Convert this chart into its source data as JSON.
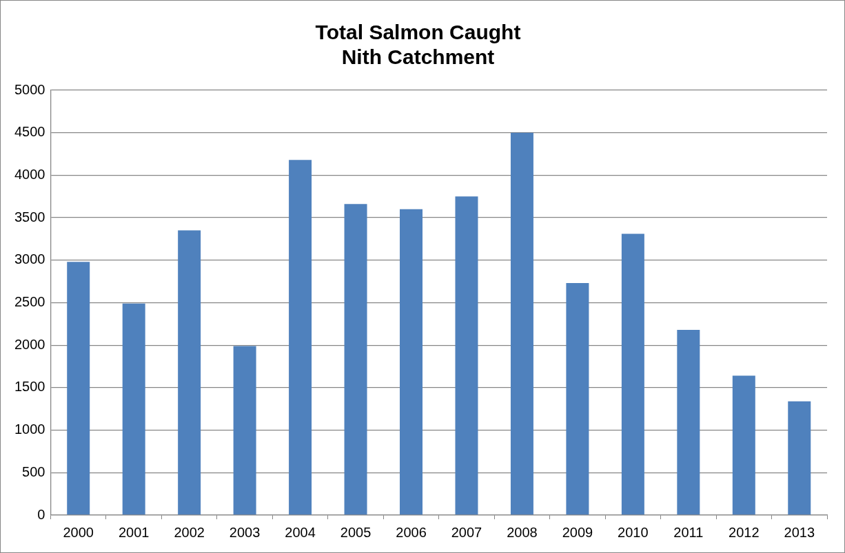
{
  "chart_data": {
    "type": "bar",
    "title": "Total Salmon Caught\nNith Catchment",
    "categories": [
      "2000",
      "2001",
      "2002",
      "2003",
      "2004",
      "2005",
      "2006",
      "2007",
      "2008",
      "2009",
      "2010",
      "2011",
      "2012",
      "2013"
    ],
    "values": [
      2980,
      2490,
      3350,
      1990,
      4180,
      3660,
      3600,
      3750,
      4500,
      2730,
      3310,
      2180,
      1640,
      1340
    ],
    "color": "#4f81bd",
    "ylim": [
      0,
      5000
    ],
    "yticks": [
      0,
      500,
      1000,
      1500,
      2000,
      2500,
      3000,
      3500,
      4000,
      4500,
      5000
    ],
    "grid": "y",
    "legend": false
  }
}
